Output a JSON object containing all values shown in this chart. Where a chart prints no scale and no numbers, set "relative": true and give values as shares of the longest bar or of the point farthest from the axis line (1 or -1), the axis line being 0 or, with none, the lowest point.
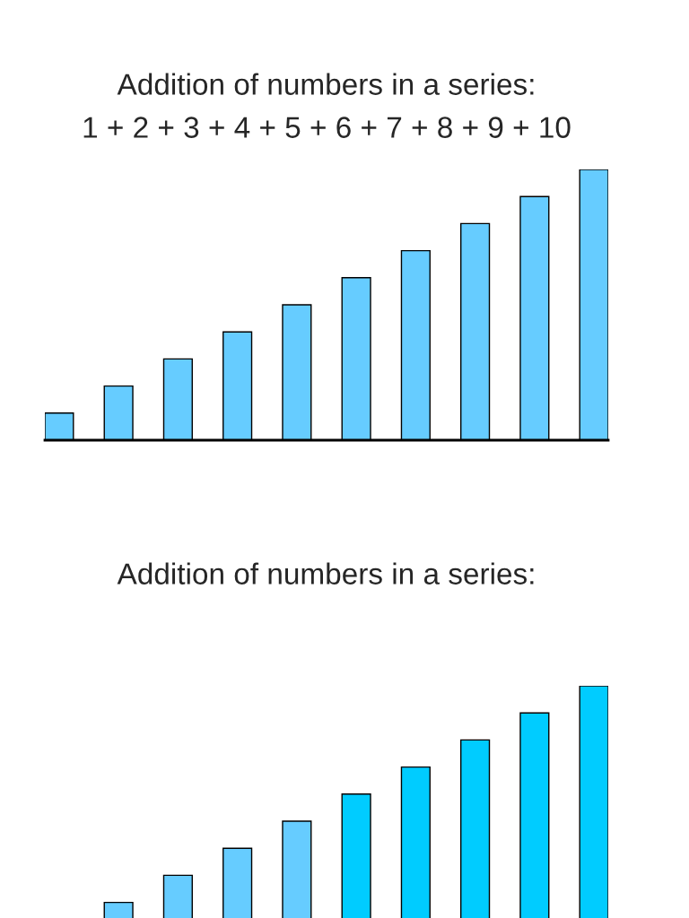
{
  "chart_data": [
    {
      "type": "bar",
      "title": "Addition of numbers in a series:",
      "subtitle": "1 + 2 + 3 + 4 + 5 + 6 + 7 + 8 + 9 + 10",
      "relative": true,
      "categories": [
        null,
        null,
        null,
        null,
        null,
        null,
        null,
        null,
        null,
        null
      ],
      "values": [
        0.1,
        0.2,
        0.3,
        0.4,
        0.5,
        0.6,
        0.7,
        0.8,
        0.9,
        1.0
      ],
      "color": "#66ccff",
      "grid": false,
      "legend": false
    },
    {
      "type": "bar",
      "title": "Addition of numbers in a series:",
      "relative": true,
      "categories": [
        null,
        null,
        null,
        null,
        null,
        null,
        null,
        null,
        null,
        null
      ],
      "values": [
        null,
        0.2,
        0.3,
        0.4,
        0.5,
        0.6,
        0.7,
        0.8,
        0.9,
        1.0
      ],
      "colors": [
        "#66ccff",
        "#66ccff",
        "#66ccff",
        "#66ccff",
        "#66ccff",
        "#00ccff",
        "#00ccff",
        "#00ccff",
        "#00ccff",
        "#00ccff"
      ],
      "grid": false,
      "legend": false
    }
  ]
}
